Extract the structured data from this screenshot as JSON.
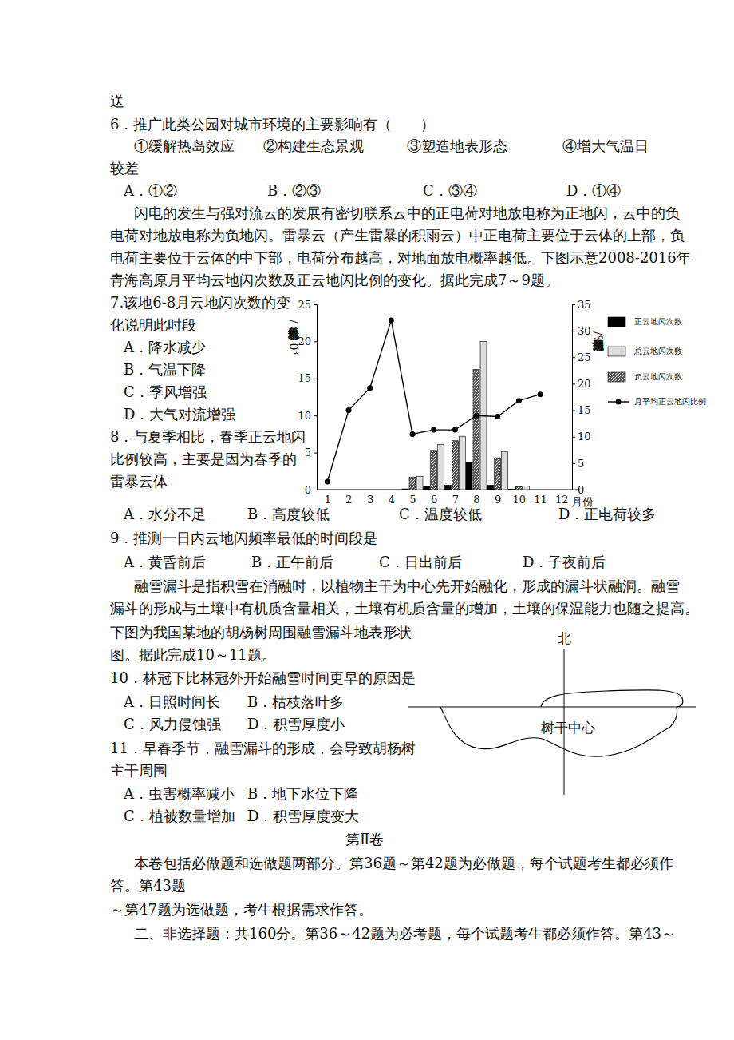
{
  "document": {
    "lines": [
      [
        "送"
      ],
      [
        "6．推广此类公园对城市环境的主要影响有（　　）"
      ],
      [
        "①缓解热岛效应",
        "②构建生态景观",
        "③塑造地表形态",
        "④增大气温日"
      ],
      [
        "较差"
      ],
      [
        "A．①②",
        "B．②③",
        "C．③④",
        "D．①④"
      ],
      [
        "闪电的发生与强对流云的发展有密切联系云中的正电荷对地放电称为正地闪，云中的负"
      ],
      [
        "电荷对地放电称为负地闪。雷暴云（产生雷暴的积雨云）中正电荷主要位于云体的上部，负"
      ],
      [
        "电荷主要位于云体的中下部，电荷分布越高，对地面放电概率越低。下图示意2008-2016年"
      ],
      [
        "青海高原月平均云地闪次数及正云地闪比例的变化。据此完成7～9题。"
      ],
      [
        "7.该地6-8月云地闪次数的变"
      ],
      [
        "化说明此时段"
      ],
      [
        "A．降水减少"
      ],
      [
        "B．气温下降"
      ],
      [
        "C．季风增强"
      ],
      [
        "D．大气对流增强"
      ],
      [
        "8．与夏季相比，春季正云地闪"
      ],
      [
        "比例较高，主要是因为春季的"
      ],
      [
        "雷暴云体"
      ],
      [
        "A．水分不足",
        "B．高度较低",
        "C．温度较低",
        "D．正电荷较多"
      ],
      [
        "9．推测一日内云地闪频率最低的时间段是"
      ],
      [
        "A．黄昏前后",
        "B．正午前后",
        "C．日出前后",
        "D．子夜前后"
      ],
      [
        "融雪漏斗是指积雪在消融时，以植物主干为中心先开始融化，形成的漏斗状融洞。融雪"
      ],
      [
        "漏斗的形成与土壤中有机质含量相关，土壤有机质含量的增加，土壤的保温能力也随之提高。"
      ],
      [
        "下图为我国某地的胡杨树周围融雪漏斗地表形状"
      ],
      [
        "图。据此完成10～11题。"
      ],
      [
        "10．林冠下比林冠外开始融雪时间更早的原因是"
      ],
      [
        "A．日照时间长",
        "B．枯枝落叶多"
      ],
      [
        "C．风力侵蚀强",
        "D．积雪厚度小"
      ],
      [
        "11．早春季节，融雪漏斗的形成，会导致胡杨树"
      ],
      [
        "主干周围"
      ],
      [
        "A．虫害概率减小",
        "B．地下水位下降"
      ],
      [
        "C．植被数量增加",
        "D．积雪厚度变大"
      ],
      [
        "第Ⅱ卷"
      ],
      [
        "本卷包括必做题和选做题两部分。第36题～第42题为必做题，每个试题考生都必须作"
      ],
      [
        "答。第43题"
      ],
      [
        "～第47题为选做题，考生根据需求作答。"
      ],
      [
        "二、非选择题：共160分。第36～42题为必考题，每个试题考生都必须作答。第43～"
      ]
    ]
  },
  "chart_data": {
    "type": "bar",
    "x_label": "月份",
    "y_label": "月平均云地闪次数/×10³",
    "y2_label": "月平均正云地闪比例/%",
    "categories": [
      "1",
      "2",
      "3",
      "4",
      "5",
      "6",
      "7",
      "8",
      "9",
      "10",
      "11",
      "12"
    ],
    "series": [
      {
        "name": "正云地闪次数",
        "color": "#000000",
        "values": [
          null,
          null,
          null,
          null,
          0.1,
          0.5,
          0.6,
          3.7,
          0.6,
          0.05,
          null,
          null
        ]
      },
      {
        "name": "总云地闪次数",
        "color": "#dcdcdc",
        "values": [
          null,
          null,
          null,
          null,
          1.8,
          6.1,
          7.2,
          20.0,
          5.1,
          0.5,
          null,
          null
        ]
      },
      {
        "name": "负云地闪次数",
        "color": "#595959",
        "values": [
          null,
          null,
          null,
          null,
          1.7,
          5.3,
          6.6,
          16.2,
          4.3,
          0.4,
          null,
          null
        ]
      },
      {
        "name": "月平均正云地闪比例",
        "type": "line",
        "axis": "y2",
        "color": "#000000",
        "marker": "circle",
        "values": [
          1.5,
          15,
          19.2,
          32,
          10.5,
          11.3,
          11.3,
          14,
          13.8,
          16.8,
          18,
          null
        ]
      }
    ],
    "ylim": [
      0,
      25
    ],
    "yticks": [
      0,
      5,
      10,
      15,
      20,
      25
    ],
    "y2lim": [
      0,
      35
    ],
    "y2ticks": [
      0,
      5,
      10,
      15,
      20,
      25,
      30,
      35
    ],
    "legend": "right"
  },
  "diagram": {
    "labels": [
      "北",
      "树干中心"
    ]
  }
}
